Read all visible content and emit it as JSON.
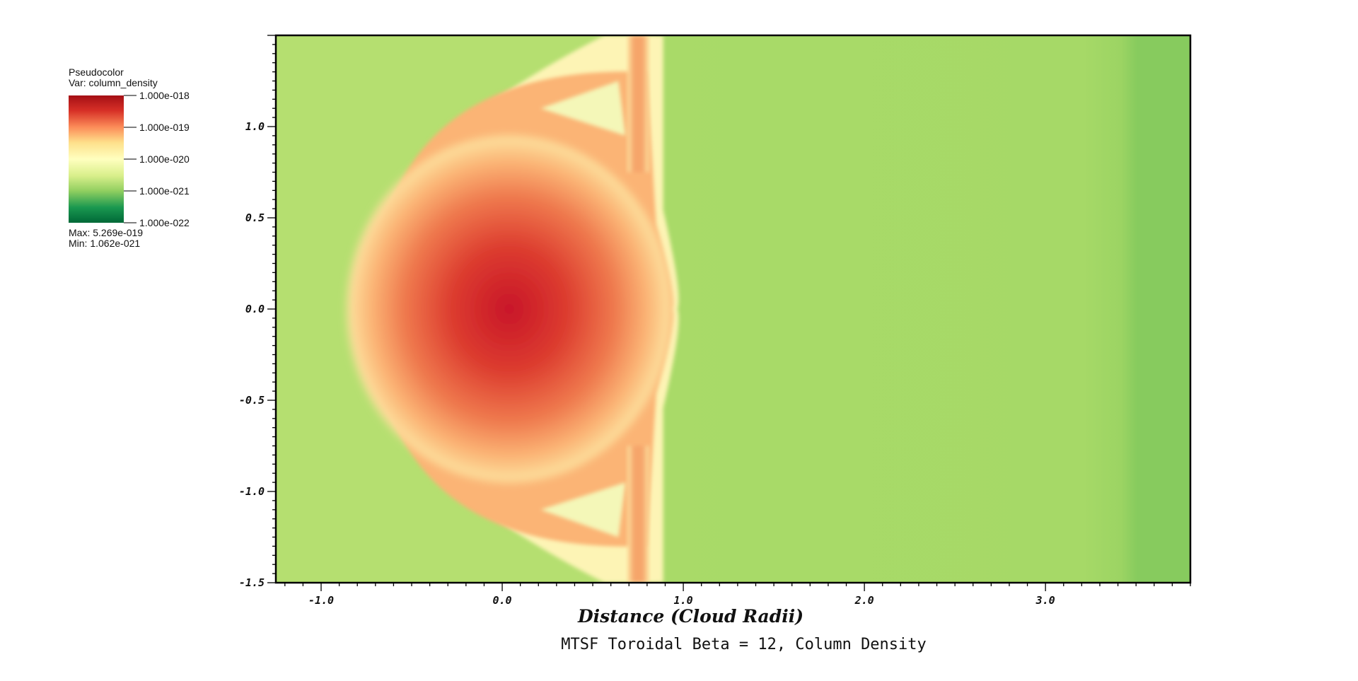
{
  "legend": {
    "title": "Pseudocolor",
    "var": "Var: column_density",
    "ticks": [
      "1.000e-018",
      "1.000e-019",
      "1.000e-020",
      "1.000e-021",
      "1.000e-022"
    ],
    "max": "Max:  5.269e-019",
    "min": "Min:  1.062e-021"
  },
  "chart_data": {
    "type": "heatmap",
    "title": "MTSF Toroidal Beta = 12, Column Density",
    "xlabel": "Distance (Cloud Radii)",
    "ylabel": "",
    "xlim": [
      -1.25,
      3.8
    ],
    "ylim": [
      -1.5,
      1.5
    ],
    "x_ticks": [
      {
        "value": -1.0,
        "label": "-1.0"
      },
      {
        "value": 0.0,
        "label": "0.0"
      },
      {
        "value": 1.0,
        "label": "1.0"
      },
      {
        "value": 2.0,
        "label": "2.0"
      },
      {
        "value": 3.0,
        "label": "3.0"
      }
    ],
    "y_ticks": [
      {
        "value": 1.0,
        "label": "1.0"
      },
      {
        "value": 0.5,
        "label": "0.5"
      },
      {
        "value": 0.0,
        "label": "0.0"
      },
      {
        "value": -0.5,
        "label": "-0.5"
      },
      {
        "value": -1.0,
        "label": "-1.0"
      },
      {
        "value": -1.5,
        "label": "-1.5"
      }
    ],
    "colormap": [
      "#a50f15",
      "#d73027",
      "#fc8d59",
      "#fee08b",
      "#ffffbf",
      "#d9ef8b",
      "#91cf60",
      "#1a9850",
      "#006837"
    ],
    "background_color": "#b5df70",
    "features": {
      "cloud_center": [
        0.0,
        0.0
      ],
      "cloud_radius_y": 1.3,
      "bow_front_x": -0.75,
      "shock_x": 0.85,
      "band_x": 0.72,
      "band_width": 0.12
    },
    "grid": false,
    "legend_position": "top-left"
  }
}
